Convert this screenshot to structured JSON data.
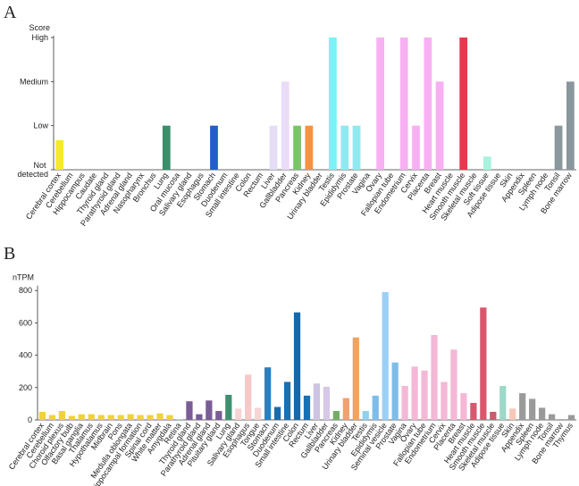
{
  "chart_data": [
    {
      "type": "bar",
      "panel": "A",
      "ylabel": "Score",
      "categories": [
        "Cerebral cortex",
        "Cerebellum",
        "Hippocampus",
        "Caudate",
        "Thyroid gland",
        "Parathyroid gland",
        "Adrenal gland",
        "Nasopharynx",
        "Bronchus",
        "Lung",
        "Oral mucosa",
        "Salivary gland",
        "Esophagus",
        "Stomach",
        "Duodenum",
        "Small intestine",
        "Colon",
        "Rectum",
        "Liver",
        "Gallbladder",
        "Pancreas",
        "Kidney",
        "Urinary bladder",
        "Testis",
        "Epididymis",
        "Prostate",
        "Vagina",
        "Ovary",
        "Fallopian tube",
        "Endometrium",
        "Cervix",
        "Placenta",
        "Breast",
        "Heart muscle",
        "Smooth muscle",
        "Skeletal muscle",
        "Soft tissue",
        "Adipose tissue",
        "Skin",
        "Appendix",
        "Spleen",
        "Lymph node",
        "Tonsil",
        "Bone marrow"
      ],
      "values": [
        0.67,
        0,
        0,
        0,
        0,
        0,
        0,
        0,
        0,
        1,
        0,
        0,
        0,
        1,
        0,
        0,
        0,
        0,
        1,
        2,
        1,
        1,
        0,
        3,
        1,
        1,
        0,
        3,
        0,
        3,
        1,
        3,
        2,
        0,
        3,
        0,
        0.3,
        0,
        0,
        0,
        0,
        0,
        1,
        2
      ],
      "colors": [
        "#f5ea2a",
        "#f5ea2a",
        "#f5ea2a",
        "#f5ea2a",
        "#7a5c96",
        "#7a5c96",
        "#7a5c96",
        "#3a8f6a",
        "#3a8f6a",
        "#3a8f6a",
        "#f4c8c8",
        "#f4c8c8",
        "#f4c8c8",
        "#1f5fc7",
        "#1f5fc7",
        "#1f5fc7",
        "#1f5fc7",
        "#1f5fc7",
        "#e5dcf5",
        "#e9dcf8",
        "#7cc46a",
        "#f49244",
        "#f49244",
        "#7ff0f5",
        "#8fe9f0",
        "#8fe9f0",
        "#f7b0f2",
        "#f7b0f2",
        "#f7b0f2",
        "#f7b0f2",
        "#f7b0f2",
        "#f7b0f2",
        "#f7b0f2",
        "#e8384f",
        "#e8384f",
        "#e8384f",
        "#a8f3e0",
        "#a8f3e0",
        "#f7c7b8",
        "#8a979c",
        "#8a979c",
        "#8a979c",
        "#8a979c",
        "#8a979c"
      ],
      "ylim": [
        0,
        3
      ],
      "yticks": [
        {
          "value": 0,
          "label": "Not detected"
        },
        {
          "value": 1,
          "label": "Low"
        },
        {
          "value": 2,
          "label": "Medium"
        },
        {
          "value": 3,
          "label": "High"
        }
      ]
    },
    {
      "type": "bar",
      "panel": "B",
      "ylabel": "nTPM",
      "categories": [
        "Cerebral cortex",
        "Cerebellum",
        "Choroid plexus",
        "Olfactory bulb",
        "Basal ganglia",
        "Thalamus",
        "Hypothalamus",
        "Midbrain",
        "Pons",
        "Medulla oblongata",
        "Hippocampal formation",
        "Spinal cord",
        "White matter",
        "Amygdala",
        "Retina",
        "Thyroid gland",
        "Parathyroid gland",
        "Adrenal gland",
        "Pituitary gland",
        "Lung",
        "Salivary gland",
        "Esophagus",
        "Tongue",
        "Stomach",
        "Duodenum",
        "Small intestine",
        "Colon",
        "Rectum",
        "Liver",
        "Gallbladder",
        "Pancreas",
        "Kidney",
        "Urinary bladder",
        "Testis",
        "Epididymis",
        "Seminal vesicle",
        "Prostate",
        "Vagina",
        "Ovary",
        "Fallopian tube",
        "Endometrium",
        "Cervix",
        "Placenta",
        "Breast",
        "Heart muscle",
        "Smooth muscle",
        "Skeletal muscle",
        "Adipose tissue",
        "Skin",
        "Appendix",
        "Spleen",
        "Lymph node",
        "Tonsil",
        "Bone marrow",
        "Thymus"
      ],
      "values": [
        50,
        30,
        55,
        25,
        35,
        35,
        30,
        30,
        30,
        35,
        30,
        30,
        40,
        30,
        5,
        115,
        35,
        120,
        55,
        155,
        70,
        280,
        75,
        325,
        80,
        235,
        665,
        150,
        225,
        205,
        55,
        135,
        510,
        55,
        150,
        790,
        355,
        210,
        330,
        305,
        525,
        235,
        435,
        165,
        105,
        695,
        50,
        210,
        70,
        165,
        130,
        75,
        35,
        0,
        30
      ],
      "colors": [
        "#f0d23a",
        "#f0d23a",
        "#f0d23a",
        "#f0d23a",
        "#f0d23a",
        "#f0d23a",
        "#f0d23a",
        "#f0d23a",
        "#f0d23a",
        "#f0d23a",
        "#f0d23a",
        "#f0d23a",
        "#f0d23a",
        "#f0d23a",
        "#f0d23a",
        "#7a5c96",
        "#7a5c96",
        "#7a5c96",
        "#7a5c96",
        "#3f9070",
        "#f7d5d5",
        "#f7c8c8",
        "#f7d5d5",
        "#2a7fc0",
        "#1c6aa8",
        "#1a70b0",
        "#1668a8",
        "#1a70b0",
        "#cdc3e2",
        "#d6c8e6",
        "#74ad66",
        "#f1a070",
        "#f3a35f",
        "#8fd0ee",
        "#7fbde8",
        "#9ad0f5",
        "#7fbde8",
        "#f4b8d6",
        "#f4b8d6",
        "#f4b8d6",
        "#f4b8d6",
        "#f4b8d6",
        "#f4b8d6",
        "#f4b8d6",
        "#d85870",
        "#d9566d",
        "#cc5a6e",
        "#9ed8c8",
        "#f7c7b8",
        "#9a9a9a",
        "#9a9a9a",
        "#9a9a9a",
        "#9a9a9a",
        "#9a9a9a",
        "#9a9a9a"
      ],
      "ylim": [
        0,
        820
      ],
      "yticks": [
        0,
        200,
        400,
        600,
        800
      ]
    }
  ]
}
